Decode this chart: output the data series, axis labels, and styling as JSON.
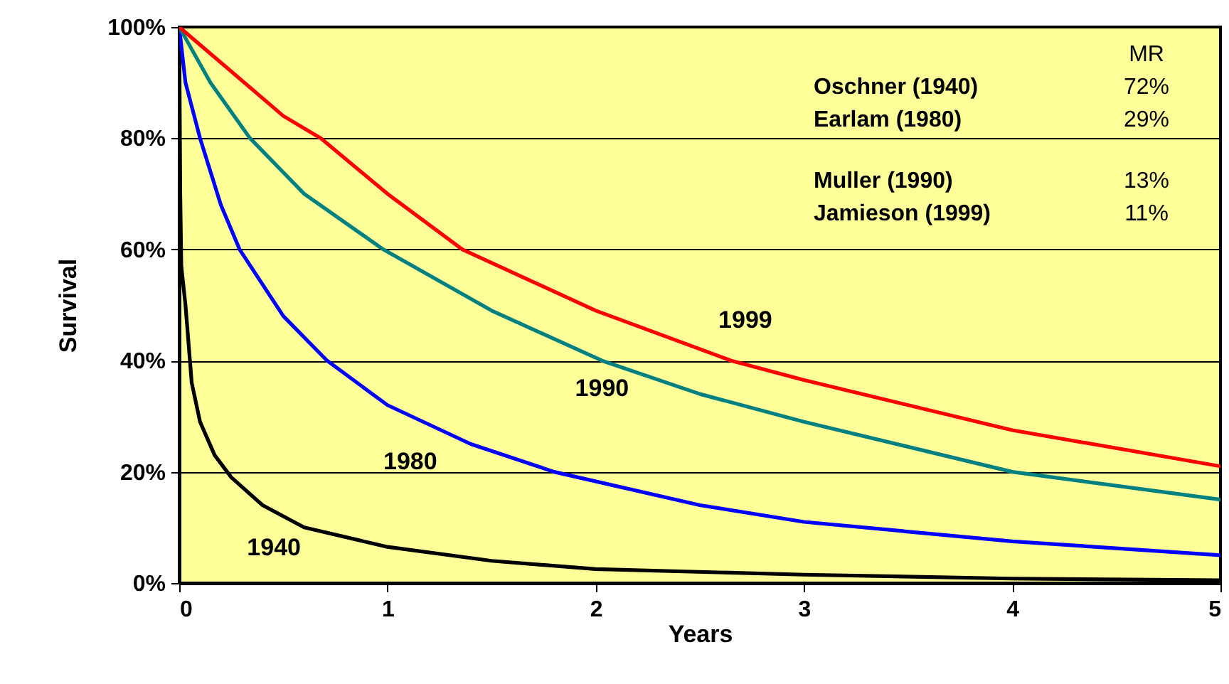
{
  "chart_data": {
    "type": "line",
    "xlabel": "Years",
    "ylabel": "Survival",
    "xlim": [
      0,
      5
    ],
    "xticks": [
      0,
      1,
      2,
      3,
      4,
      5
    ],
    "ylim": [
      0,
      100
    ],
    "yticks": [
      {
        "value": 0,
        "label": "0%"
      },
      {
        "value": 20,
        "label": "20%"
      },
      {
        "value": 40,
        "label": "40%"
      },
      {
        "value": 60,
        "label": "60%"
      },
      {
        "value": 80,
        "label": "80%"
      },
      {
        "value": 100,
        "label": "100%"
      }
    ],
    "grid": "y",
    "marker": "none",
    "line_style": "solid",
    "series": [
      {
        "name": "1940",
        "color": "#000000",
        "x": [
          0,
          0.005,
          0.01,
          0.03,
          0.06,
          0.1,
          0.17,
          0.25,
          0.4,
          0.6,
          1,
          1.5,
          2,
          3,
          4,
          5
        ],
        "values": [
          100,
          70,
          57,
          50,
          36,
          29,
          23,
          19,
          14,
          10,
          6.5,
          4,
          2.5,
          1.5,
          0.8,
          0.5
        ]
      },
      {
        "name": "1980",
        "color": "#0000ff",
        "x": [
          0,
          0.03,
          0.1,
          0.2,
          0.29,
          0.5,
          0.71,
          1,
          1.4,
          1.8,
          2.5,
          3,
          4,
          5
        ],
        "values": [
          100,
          90,
          80,
          68,
          60,
          48,
          40,
          32,
          25,
          20,
          14,
          11,
          7.5,
          5
        ]
      },
      {
        "name": "1990",
        "color": "#008080",
        "x": [
          0,
          0.15,
          0.34,
          0.6,
          0.98,
          1.5,
          2.03,
          2.5,
          3,
          4,
          5
        ],
        "values": [
          100,
          90,
          80,
          70,
          60,
          49,
          40,
          34,
          29,
          20,
          15
        ]
      },
      {
        "name": "1999",
        "color": "#ff0000",
        "x": [
          0,
          0.25,
          0.5,
          0.68,
          1,
          1.36,
          2,
          2.65,
          3,
          4,
          5
        ],
        "values": [
          100,
          92,
          84,
          80,
          70,
          60,
          49,
          40,
          36.5,
          27.5,
          21
        ]
      }
    ],
    "annotations": [
      "MR",
      "Oschner (1940)",
      "72%",
      "Earlam (1980)",
      "29%",
      "Muller (1990)",
      "13%",
      "Jamieson (1999)",
      "11%"
    ]
  }
}
